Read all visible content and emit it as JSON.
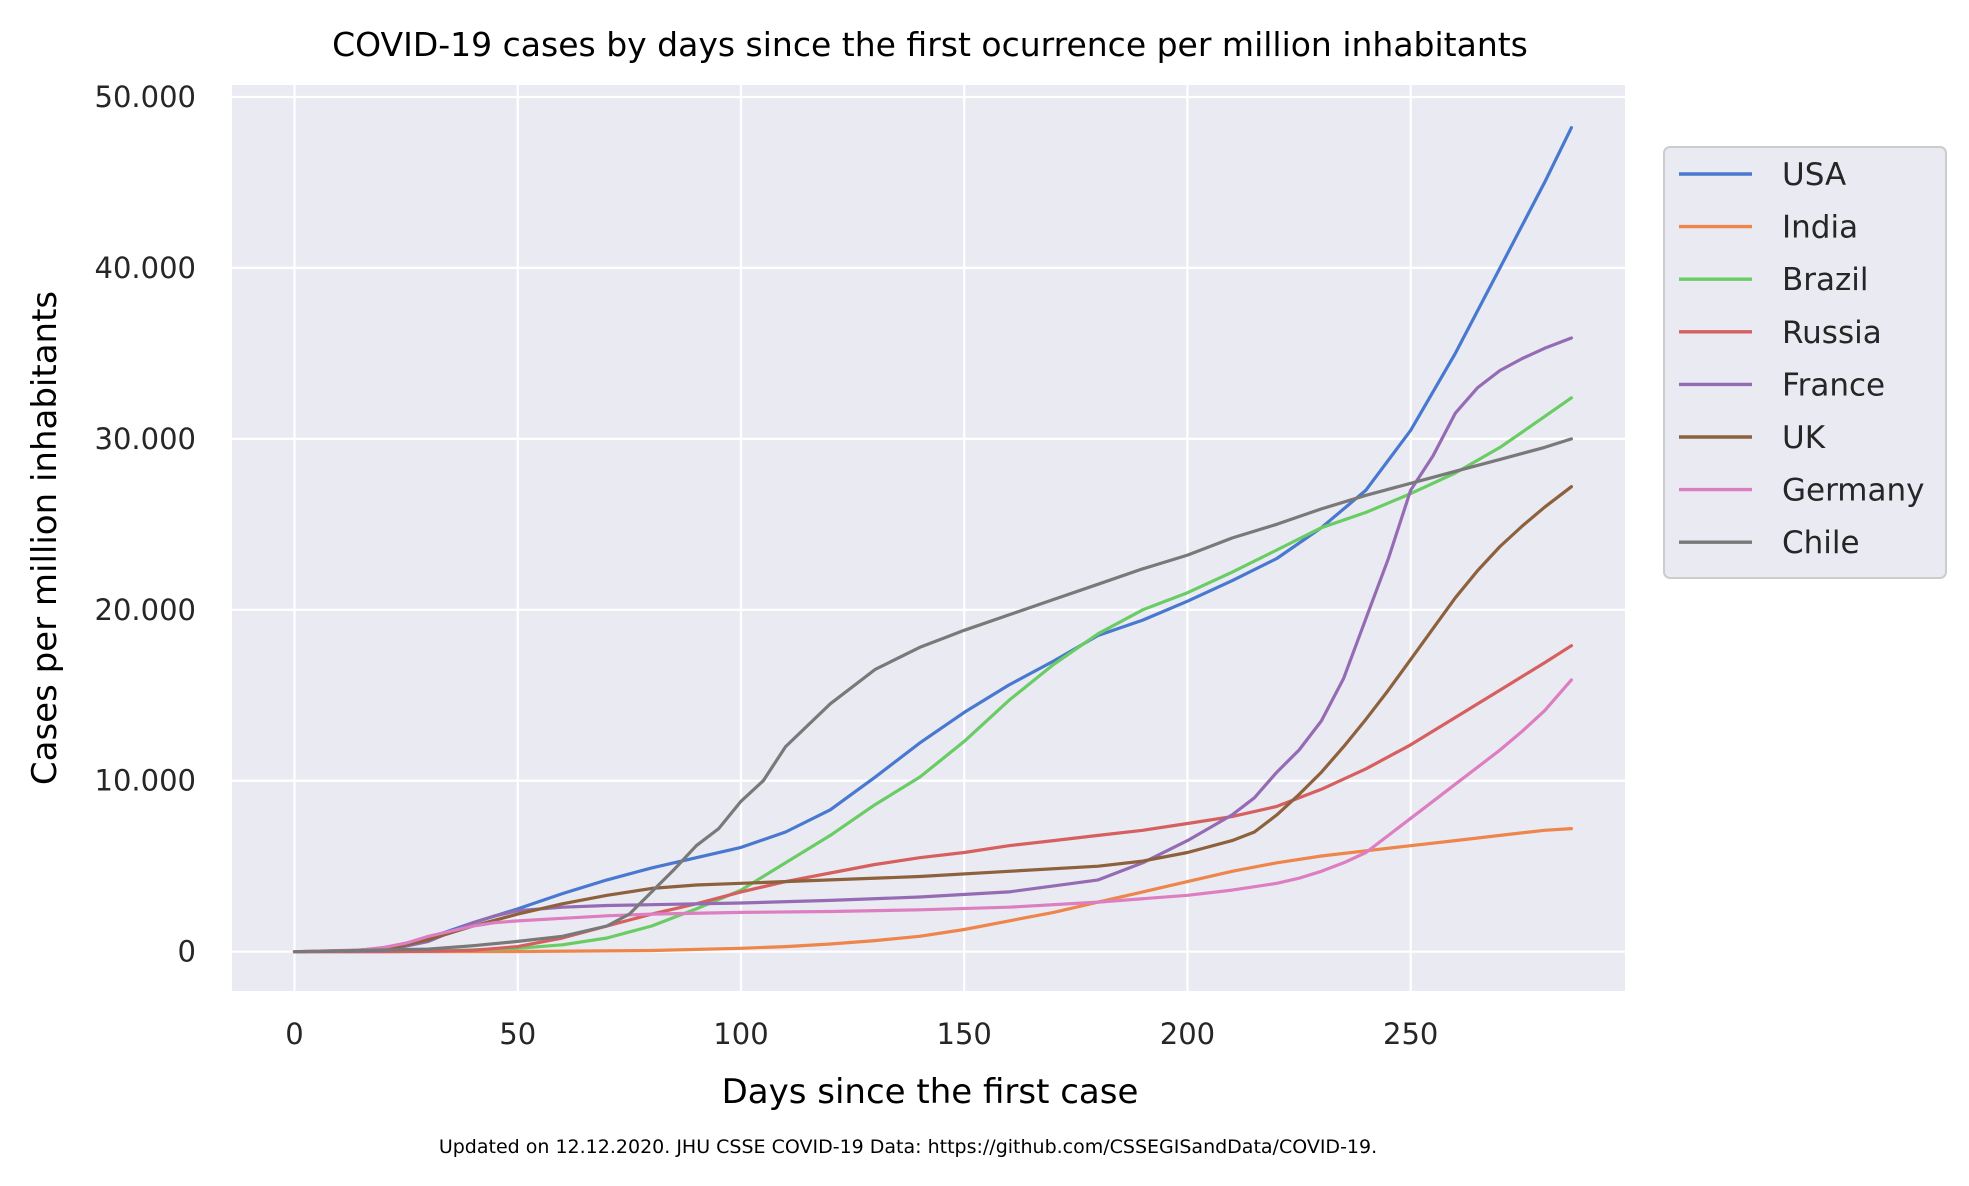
{
  "chart_data": {
    "type": "line",
    "title": "COVID-19 cases by days since the first ocurrence per million inhabitants",
    "xlabel": "Days since the first case",
    "ylabel": "Cases per million inhabitants",
    "footnote": "Updated on 12.12.2020. JHU CSSE COVID-19 Data: https://github.com/CSSEGISandData/COVID-19.",
    "xlim": [
      -14,
      298
    ],
    "ylim": [
      -2300,
      50700
    ],
    "xticks": [
      0,
      50,
      100,
      150,
      200,
      250
    ],
    "xtick_labels": [
      "0",
      "50",
      "100",
      "150",
      "200",
      "250"
    ],
    "yticks": [
      0,
      10000,
      20000,
      30000,
      40000,
      50000
    ],
    "ytick_labels": [
      "0",
      "10.000",
      "20.000",
      "30.000",
      "40.000",
      "50.000"
    ],
    "grid": true,
    "legend_position": "outside-right",
    "background_color": "#eaeaf2",
    "series": [
      {
        "name": "USA",
        "color": "#4878d0",
        "x": [
          0,
          10,
          20,
          30,
          40,
          45,
          50,
          60,
          70,
          80,
          90,
          100,
          110,
          120,
          130,
          140,
          150,
          160,
          170,
          180,
          190,
          200,
          210,
          220,
          230,
          240,
          250,
          260,
          270,
          280,
          286
        ],
        "y": [
          0,
          20,
          200,
          800,
          1700,
          2100,
          2500,
          3400,
          4200,
          4900,
          5500,
          6100,
          7000,
          8300,
          10200,
          12200,
          14000,
          15600,
          17000,
          18500,
          19400,
          20500,
          21700,
          23000,
          24800,
          27000,
          30500,
          35000,
          40000,
          45000,
          48200
        ]
      },
      {
        "name": "India",
        "color": "#ee854a",
        "x": [
          0,
          50,
          80,
          100,
          110,
          120,
          130,
          140,
          150,
          160,
          170,
          180,
          190,
          200,
          210,
          220,
          230,
          240,
          250,
          260,
          270,
          280,
          286
        ],
        "y": [
          0,
          10,
          70,
          200,
          300,
          450,
          650,
          900,
          1300,
          1800,
          2300,
          2900,
          3500,
          4100,
          4700,
          5200,
          5600,
          5900,
          6200,
          6500,
          6800,
          7100,
          7200
        ]
      },
      {
        "name": "Brazil",
        "color": "#6acc64",
        "x": [
          0,
          30,
          50,
          60,
          70,
          80,
          90,
          100,
          110,
          120,
          130,
          140,
          150,
          160,
          170,
          180,
          190,
          200,
          210,
          220,
          230,
          240,
          250,
          260,
          270,
          280,
          286
        ],
        "y": [
          0,
          20,
          200,
          400,
          800,
          1500,
          2500,
          3600,
          5200,
          6800,
          8600,
          10200,
          12300,
          14700,
          16800,
          18600,
          20000,
          21000,
          22200,
          23500,
          24800,
          25700,
          26800,
          28000,
          29500,
          31300,
          32400
        ]
      },
      {
        "name": "Russia",
        "color": "#d65f5f",
        "x": [
          0,
          20,
          30,
          40,
          50,
          60,
          70,
          80,
          90,
          100,
          110,
          120,
          130,
          140,
          150,
          160,
          170,
          180,
          190,
          200,
          210,
          220,
          230,
          240,
          250,
          260,
          270,
          280,
          286
        ],
        "y": [
          0,
          5,
          20,
          80,
          300,
          800,
          1500,
          2200,
          2800,
          3500,
          4100,
          4600,
          5100,
          5500,
          5800,
          6200,
          6500,
          6800,
          7100,
          7500,
          7900,
          8500,
          9500,
          10700,
          12100,
          13700,
          15300,
          16900,
          17900
        ]
      },
      {
        "name": "France",
        "color": "#956cb4",
        "x": [
          0,
          20,
          30,
          40,
          45,
          50,
          60,
          70,
          80,
          100,
          120,
          140,
          160,
          180,
          190,
          200,
          210,
          215,
          220,
          225,
          230,
          235,
          240,
          245,
          250,
          255,
          260,
          265,
          270,
          275,
          280,
          286
        ],
        "y": [
          0,
          50,
          600,
          1700,
          2100,
          2400,
          2600,
          2700,
          2750,
          2850,
          3000,
          3200,
          3500,
          4200,
          5200,
          6500,
          8000,
          9000,
          10500,
          11800,
          13500,
          16000,
          19500,
          23000,
          27000,
          29000,
          31500,
          33000,
          34000,
          34700,
          35300,
          35900
        ]
      },
      {
        "name": "UK",
        "color": "#8c613c",
        "x": [
          0,
          20,
          30,
          40,
          50,
          60,
          70,
          80,
          90,
          100,
          120,
          140,
          160,
          180,
          190,
          200,
          210,
          215,
          220,
          225,
          230,
          235,
          240,
          245,
          250,
          255,
          260,
          265,
          270,
          275,
          280,
          286
        ],
        "y": [
          0,
          100,
          700,
          1500,
          2200,
          2800,
          3300,
          3700,
          3900,
          4000,
          4200,
          4400,
          4700,
          5000,
          5300,
          5800,
          6500,
          7000,
          8000,
          9200,
          10500,
          12000,
          13600,
          15300,
          17100,
          18900,
          20700,
          22300,
          23700,
          24900,
          26000,
          27200
        ]
      },
      {
        "name": "Germany",
        "color": "#dc7ec0",
        "x": [
          0,
          15,
          20,
          25,
          30,
          35,
          40,
          45,
          50,
          60,
          70,
          80,
          100,
          120,
          140,
          160,
          180,
          200,
          210,
          220,
          225,
          230,
          235,
          240,
          245,
          250,
          255,
          260,
          265,
          270,
          275,
          280,
          286
        ],
        "y": [
          0,
          100,
          250,
          500,
          900,
          1200,
          1500,
          1700,
          1800,
          1950,
          2100,
          2200,
          2300,
          2350,
          2450,
          2600,
          2900,
          3300,
          3600,
          4000,
          4300,
          4700,
          5200,
          5800,
          6800,
          7800,
          8800,
          9800,
          10800,
          11800,
          12900,
          14100,
          15900
        ]
      },
      {
        "name": "Chile",
        "color": "#797979",
        "x": [
          0,
          30,
          40,
          50,
          60,
          65,
          70,
          75,
          80,
          85,
          90,
          95,
          100,
          105,
          110,
          120,
          130,
          140,
          150,
          160,
          170,
          180,
          190,
          200,
          210,
          220,
          230,
          240,
          250,
          260,
          270,
          280,
          286
        ],
        "y": [
          0,
          150,
          350,
          600,
          900,
          1200,
          1500,
          2200,
          3500,
          4800,
          6200,
          7200,
          8800,
          10000,
          12000,
          14500,
          16500,
          17800,
          18800,
          19700,
          20600,
          21500,
          22400,
          23200,
          24200,
          25000,
          25900,
          26700,
          27400,
          28100,
          28800,
          29500,
          30000
        ]
      }
    ]
  }
}
